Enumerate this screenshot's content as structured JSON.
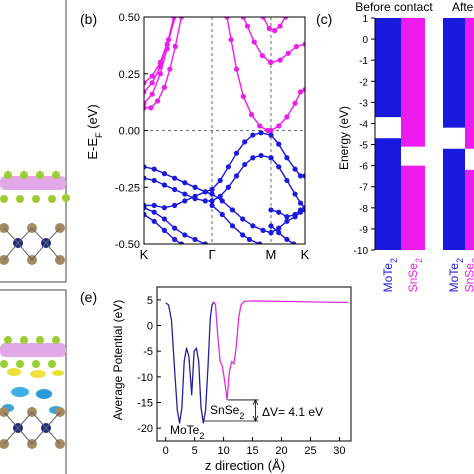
{
  "colors": {
    "mote2": "#1a1adf",
    "snse2": "#ee1bee",
    "mote2_potential": "#22229a",
    "snse2_potential": "#dd2ed8",
    "gridline": "#444444"
  },
  "chart_data": [
    {
      "panel_label": "(b)",
      "type": "line",
      "title": "",
      "xlabel": "",
      "ylabel": "E-E_F (eV)",
      "ylim": [
        -0.5,
        0.5
      ],
      "yticks": [
        -0.5,
        -0.25,
        0.0,
        0.25,
        0.5
      ],
      "xticks": [
        {
          "label": "K",
          "x": 0.0
        },
        {
          "label": "Γ",
          "x": 1.0
        },
        {
          "label": "M",
          "x": 1.866
        },
        {
          "label": "K",
          "x": 2.366
        }
      ],
      "grid": "vertical dashed at Γ and M; horizontal dashed at 0",
      "series": [
        {
          "species": "SnSe2",
          "values": [
            [
              0.0,
              0.21
            ],
            [
              0.12,
              0.24
            ],
            [
              0.24,
              0.3
            ],
            [
              0.36,
              0.4
            ],
            [
              0.48,
              0.52
            ]
          ]
        },
        {
          "species": "SnSe2",
          "values": [
            [
              0.0,
              0.1
            ],
            [
              0.1,
              0.1
            ],
            [
              0.2,
              0.13
            ],
            [
              0.3,
              0.19
            ],
            [
              0.38,
              0.27
            ],
            [
              0.46,
              0.37
            ],
            [
              0.55,
              0.5
            ]
          ]
        },
        {
          "species": "SnSe2",
          "values": [
            [
              0.0,
              0.12
            ],
            [
              0.12,
              0.16
            ],
            [
              0.24,
              0.25
            ],
            [
              0.34,
              0.36
            ],
            [
              0.44,
              0.5
            ]
          ]
        },
        {
          "species": "SnSe2",
          "values": [
            [
              0.0,
              0.17
            ],
            [
              0.12,
              0.21
            ],
            [
              0.24,
              0.28
            ],
            [
              0.34,
              0.38
            ],
            [
              0.44,
              0.5
            ]
          ]
        },
        {
          "species": "SnSe2",
          "values": [
            [
              1.82,
              0.0
            ],
            [
              1.7,
              0.02
            ],
            [
              1.58,
              0.07
            ],
            [
              1.46,
              0.15
            ],
            [
              1.36,
              0.27
            ],
            [
              1.28,
              0.4
            ],
            [
              1.22,
              0.5
            ]
          ]
        },
        {
          "species": "SnSe2",
          "values": [
            [
              1.866,
              0.0
            ],
            [
              1.98,
              0.02
            ],
            [
              2.1,
              0.06
            ],
            [
              2.22,
              0.12
            ],
            [
              2.3,
              0.17
            ],
            [
              2.366,
              0.18
            ]
          ]
        },
        {
          "species": "SnSe2",
          "values": [
            [
              1.86,
              0.3
            ],
            [
              1.74,
              0.33
            ],
            [
              1.62,
              0.39
            ],
            [
              1.52,
              0.46
            ],
            [
              1.46,
              0.5
            ]
          ]
        },
        {
          "species": "SnSe2",
          "values": [
            [
              1.866,
              0.3
            ],
            [
              2.0,
              0.31
            ],
            [
              2.12,
              0.34
            ],
            [
              2.24,
              0.37
            ],
            [
              2.366,
              0.38
            ]
          ]
        },
        {
          "species": "SnSe2",
          "values": [
            [
              1.75,
              0.5
            ],
            [
              1.84,
              0.45
            ],
            [
              1.92,
              0.44
            ],
            [
              2.0,
              0.46
            ],
            [
              2.08,
              0.5
            ]
          ]
        },
        {
          "species": "MoTe2",
          "values": [
            [
              0.0,
              -0.16
            ],
            [
              0.15,
              -0.17
            ],
            [
              0.3,
              -0.19
            ],
            [
              0.45,
              -0.21
            ],
            [
              0.6,
              -0.23
            ],
            [
              0.75,
              -0.25
            ],
            [
              0.9,
              -0.27
            ],
            [
              1.0,
              -0.28
            ]
          ]
        },
        {
          "species": "MoTe2",
          "values": [
            [
              0.0,
              -0.21
            ],
            [
              0.15,
              -0.22
            ],
            [
              0.3,
              -0.24
            ],
            [
              0.45,
              -0.26
            ],
            [
              0.6,
              -0.28
            ],
            [
              0.75,
              -0.3
            ],
            [
              0.9,
              -0.31
            ],
            [
              1.0,
              -0.31
            ]
          ]
        },
        {
          "species": "MoTe2",
          "values": [
            [
              0.0,
              -0.33
            ],
            [
              0.15,
              -0.33
            ],
            [
              0.3,
              -0.34
            ],
            [
              0.45,
              -0.33
            ],
            [
              0.6,
              -0.31
            ],
            [
              0.75,
              -0.29
            ],
            [
              0.9,
              -0.27
            ],
            [
              1.0,
              -0.26
            ]
          ]
        },
        {
          "species": "MoTe2",
          "values": [
            [
              0.0,
              -0.34
            ],
            [
              0.15,
              -0.36
            ],
            [
              0.3,
              -0.39
            ],
            [
              0.45,
              -0.43
            ],
            [
              0.6,
              -0.46
            ],
            [
              0.75,
              -0.48
            ],
            [
              0.9,
              -0.5
            ]
          ]
        },
        {
          "species": "MoTe2",
          "values": [
            [
              0.0,
              -0.37
            ],
            [
              0.15,
              -0.4
            ],
            [
              0.3,
              -0.44
            ],
            [
              0.45,
              -0.48
            ],
            [
              0.55,
              -0.5
            ]
          ]
        },
        {
          "species": "MoTe2",
          "values": [
            [
              1.0,
              -0.26
            ],
            [
              1.12,
              -0.22
            ],
            [
              1.24,
              -0.16
            ],
            [
              1.36,
              -0.1
            ],
            [
              1.48,
              -0.05
            ],
            [
              1.6,
              -0.02
            ],
            [
              1.72,
              -0.01
            ],
            [
              1.866,
              -0.02
            ]
          ]
        },
        {
          "species": "MoTe2",
          "values": [
            [
              1.0,
              -0.31
            ],
            [
              1.12,
              -0.29
            ],
            [
              1.24,
              -0.25
            ],
            [
              1.36,
              -0.2
            ],
            [
              1.48,
              -0.15
            ],
            [
              1.6,
              -0.12
            ],
            [
              1.72,
              -0.11
            ],
            [
              1.866,
              -0.12
            ]
          ]
        },
        {
          "species": "MoTe2",
          "values": [
            [
              1.0,
              -0.28
            ],
            [
              1.15,
              -0.31
            ],
            [
              1.3,
              -0.35
            ],
            [
              1.45,
              -0.39
            ],
            [
              1.6,
              -0.42
            ],
            [
              1.75,
              -0.44
            ],
            [
              1.866,
              -0.45
            ]
          ]
        },
        {
          "species": "MoTe2",
          "values": [
            [
              1.0,
              -0.33
            ],
            [
              1.15,
              -0.37
            ],
            [
              1.3,
              -0.42
            ],
            [
              1.45,
              -0.46
            ],
            [
              1.55,
              -0.48
            ],
            [
              1.7,
              -0.5
            ]
          ]
        },
        {
          "species": "MoTe2",
          "values": [
            [
              1.866,
              -0.02
            ],
            [
              1.98,
              -0.06
            ],
            [
              2.1,
              -0.12
            ],
            [
              2.22,
              -0.17
            ],
            [
              2.3,
              -0.2
            ],
            [
              2.366,
              -0.2
            ]
          ]
        },
        {
          "species": "MoTe2",
          "values": [
            [
              1.866,
              -0.12
            ],
            [
              1.98,
              -0.16
            ],
            [
              2.1,
              -0.22
            ],
            [
              2.22,
              -0.28
            ],
            [
              2.3,
              -0.32
            ],
            [
              2.366,
              -0.34
            ]
          ]
        },
        {
          "species": "MoTe2",
          "values": [
            [
              1.866,
              -0.35
            ],
            [
              1.98,
              -0.36
            ],
            [
              2.1,
              -0.38
            ],
            [
              2.22,
              -0.37
            ],
            [
              2.3,
              -0.35
            ],
            [
              2.366,
              -0.34
            ]
          ]
        },
        {
          "species": "MoTe2",
          "values": [
            [
              1.866,
              -0.45
            ],
            [
              1.98,
              -0.43
            ],
            [
              2.1,
              -0.4
            ],
            [
              2.22,
              -0.38
            ],
            [
              2.3,
              -0.36
            ],
            [
              2.366,
              -0.35
            ]
          ]
        },
        {
          "species": "MoTe2",
          "values": [
            [
              1.866,
              -0.42
            ],
            [
              1.98,
              -0.45
            ],
            [
              2.1,
              -0.48
            ],
            [
              2.2,
              -0.5
            ]
          ]
        }
      ]
    },
    {
      "panel_label": "(c)",
      "type": "bar",
      "title": "",
      "header_left": "Before contact",
      "header_right": "Afte",
      "ylabel": "Energy (eV)",
      "ylim": [
        -10,
        1
      ],
      "yticks": [
        1,
        0,
        -1,
        -2,
        -3,
        -4,
        -5,
        -6,
        -7,
        -8,
        -9,
        -10
      ],
      "groups": [
        {
          "name": "before",
          "bars": [
            {
              "label": "MoTe",
              "sub": "2",
              "species": "MoTe2",
              "cbm": -3.7,
              "vbm": -4.7
            },
            {
              "label": "SnSe",
              "sub": "2",
              "species": "SnSe2",
              "cbm": -5.1,
              "vbm": -6.0
            }
          ]
        },
        {
          "name": "after",
          "bars": [
            {
              "label": "MoTe",
              "sub": "2",
              "species": "MoTe2",
              "cbm": -4.2,
              "vbm": -5.2
            },
            {
              "label": "SnSe",
              "sub": "2",
              "species": "SnSe2",
              "cbm": -5.2,
              "vbm": -6.2
            }
          ]
        }
      ]
    },
    {
      "panel_label": "(e)",
      "type": "line",
      "title": "",
      "xlabel": "z direction (Å)",
      "ylabel": "Average Potential (eV)",
      "xlim": [
        -1.5,
        32
      ],
      "ylim": [
        -22.5,
        7.5
      ],
      "xticks": [
        0,
        5,
        10,
        15,
        20,
        25,
        30
      ],
      "yticks": [
        5,
        0,
        -5,
        -10,
        -15,
        -20
      ],
      "series": [
        {
          "species": "MoTe2",
          "values": [
            [
              0,
              4.4
            ],
            [
              0.5,
              4.0
            ],
            [
              1.0,
              1.0
            ],
            [
              1.5,
              -8.0
            ],
            [
              2.0,
              -16.5
            ],
            [
              2.4,
              -19.0
            ],
            [
              2.8,
              -16.0
            ],
            [
              3.2,
              -7.0
            ],
            [
              3.6,
              -4.4
            ],
            [
              4.0,
              -6.0
            ],
            [
              4.5,
              -13.5
            ],
            [
              4.9,
              -5.0
            ],
            [
              5.3,
              -4.4
            ],
            [
              5.7,
              -7.0
            ],
            [
              6.1,
              -16.0
            ],
            [
              6.5,
              -19.0
            ],
            [
              6.9,
              -16.5
            ],
            [
              7.3,
              -8.0
            ],
            [
              7.7,
              1.5
            ],
            [
              8.0,
              4.0
            ],
            [
              8.3,
              4.6
            ]
          ]
        },
        {
          "species": "SnSe2",
          "values": [
            [
              8.3,
              4.6
            ],
            [
              8.6,
              4.0
            ],
            [
              9.0,
              -2.0
            ],
            [
              9.4,
              -7.0
            ],
            [
              9.8,
              -8.0
            ],
            [
              10.2,
              -11.0
            ],
            [
              10.6,
              -14.5
            ],
            [
              11.0,
              -9.0
            ],
            [
              11.4,
              -7.0
            ],
            [
              11.8,
              -7.5
            ],
            [
              12.2,
              -4.0
            ],
            [
              12.6,
              1.5
            ],
            [
              13.0,
              4.0
            ],
            [
              13.6,
              4.7
            ],
            [
              15,
              4.8
            ],
            [
              20,
              4.7
            ],
            [
              25,
              4.6
            ],
            [
              30,
              4.5
            ],
            [
              31.5,
              4.5
            ]
          ]
        }
      ],
      "annotations": {
        "mote2": {
          "text": "MoTe",
          "sub": "2"
        },
        "snse2": {
          "text": "SnSe",
          "sub": "2"
        },
        "delta_v": "ΔV= 4.1 eV",
        "delta_v_bounds": [
          -14.5,
          -18.6
        ]
      }
    }
  ]
}
